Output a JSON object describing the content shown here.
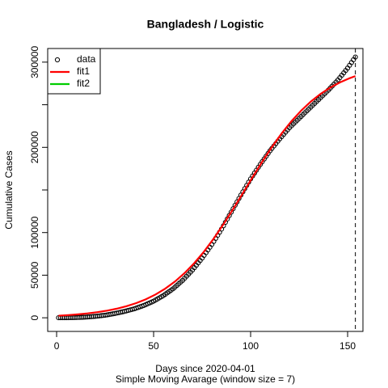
{
  "chart_data": {
    "type": "scatter",
    "title": "Bangladesh / Logistic",
    "xlabel": "Days since 2020-04-01",
    "subtitle": "Simple Moving Avarage (window size = 7)",
    "ylabel": "Cumulative Cases",
    "xlim": [
      -4.6,
      157.9
    ],
    "ylim": [
      -16000,
      316000
    ],
    "xticks": [
      0,
      50,
      100,
      150
    ],
    "yticks": [
      0,
      50000,
      100000,
      {
        "value": 150000,
        "label": null
      },
      200000,
      {
        "value": 250000,
        "label": null
      },
      300000
    ],
    "vline": 154,
    "legend": "topleft",
    "series": [
      {
        "name": "data",
        "color": "#000000",
        "marker": "circle",
        "x": [
          1,
          2,
          3,
          4,
          5,
          6,
          7,
          8,
          9,
          10,
          11,
          12,
          13,
          14,
          15,
          16,
          17,
          18,
          19,
          20,
          21,
          22,
          23,
          24,
          25,
          26,
          27,
          28,
          29,
          30,
          31,
          32,
          33,
          34,
          35,
          36,
          37,
          38,
          39,
          40,
          41,
          42,
          43,
          44,
          45,
          46,
          47,
          48,
          49,
          50,
          51,
          52,
          53,
          54,
          55,
          56,
          57,
          58,
          59,
          60,
          61,
          62,
          63,
          64,
          65,
          66,
          67,
          68,
          69,
          70,
          71,
          72,
          73,
          74,
          75,
          76,
          77,
          78,
          79,
          80,
          81,
          82,
          83,
          84,
          85,
          86,
          87,
          88,
          89,
          90,
          91,
          92,
          93,
          94,
          95,
          96,
          97,
          98,
          99,
          100,
          101,
          102,
          103,
          104,
          105,
          106,
          107,
          108,
          109,
          110,
          111,
          112,
          113,
          114,
          115,
          116,
          117,
          118,
          119,
          120,
          121,
          122,
          123,
          124,
          125,
          126,
          127,
          128,
          129,
          130,
          131,
          132,
          133,
          134,
          135,
          136,
          137,
          138,
          139,
          140,
          141,
          142,
          143,
          144,
          145,
          146,
          147,
          148,
          149,
          150,
          151,
          152,
          153,
          154
        ],
        "values": [
          50,
          63,
          75,
          88,
          100,
          140,
          180,
          220,
          260,
          300,
          400,
          500,
          600,
          700,
          800,
          980,
          1160,
          1340,
          1520,
          1700,
          1960,
          2220,
          2480,
          2740,
          3000,
          3400,
          3800,
          4200,
          4600,
          5000,
          5500,
          6000,
          6500,
          7000,
          7500,
          8100,
          8700,
          9300,
          9900,
          10500,
          11300,
          12100,
          12900,
          13700,
          14500,
          15500,
          16500,
          17500,
          18500,
          19500,
          20800,
          22100,
          23400,
          24700,
          26000,
          27600,
          29200,
          30800,
          32400,
          34000,
          36000,
          38000,
          40000,
          42000,
          44000,
          46400,
          48800,
          51200,
          53600,
          56000,
          58800,
          61600,
          64400,
          67200,
          70000,
          73200,
          76400,
          79600,
          82800,
          86000,
          89600,
          93200,
          96800,
          100400,
          104000,
          108000,
          112000,
          116000,
          120000,
          124000,
          128000,
          132000,
          136000,
          140000,
          144000,
          147800,
          151600,
          155400,
          159200,
          163000,
          166400,
          169800,
          173200,
          176600,
          180000,
          183200,
          186400,
          189600,
          192800,
          196000,
          198800,
          201600,
          204400,
          207200,
          210000,
          212600,
          215200,
          217800,
          220400,
          223000,
          225200,
          227400,
          229600,
          231800,
          234000,
          236200,
          238400,
          240600,
          242800,
          245000,
          247200,
          249400,
          251600,
          253800,
          256000,
          258200,
          260400,
          262600,
          264800,
          267000,
          269400,
          271800,
          274200,
          276600,
          279000,
          281800,
          284600,
          287400,
          290200,
          293000,
          296250,
          299500,
          302750,
          306000
        ]
      },
      {
        "name": "fit1",
        "color": "#ff0000",
        "marker": "line",
        "x": [
          1,
          6,
          11,
          16,
          21,
          26,
          31,
          36,
          41,
          46,
          51,
          56,
          61,
          66,
          71,
          76,
          81,
          86,
          91,
          96,
          101,
          106,
          111,
          116,
          121,
          126,
          131,
          136,
          141,
          146,
          151,
          154
        ],
        "values": [
          2448,
          3134,
          4016,
          5137,
          6565,
          8378,
          10672,
          13564,
          17202,
          21724,
          27340,
          34215,
          42553,
          52530,
          64253,
          77761,
          93008,
          109758,
          127665,
          146250,
          164953,
          183197,
          200454,
          216344,
          230562,
          242995,
          253657,
          262627,
          270076,
          276169,
          281110,
          283608
        ]
      },
      {
        "name": "fit2",
        "color": "#00cd00",
        "marker": "line"
      }
    ]
  }
}
